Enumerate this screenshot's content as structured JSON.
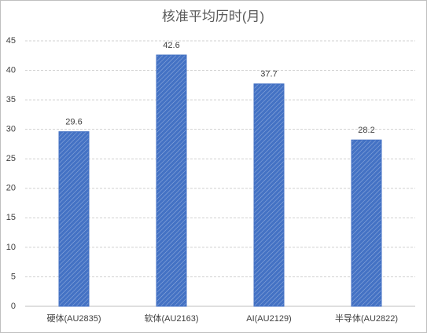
{
  "chart_data": {
    "type": "bar",
    "title": "核准平均历时(月)",
    "categories": [
      "硬体(AU2835)",
      "软体(AU2163)",
      "AI(AU2129)",
      "半导体(AU2822)"
    ],
    "values": [
      29.6,
      42.6,
      37.7,
      28.2
    ],
    "color": "#4472c4",
    "ylim": [
      0,
      45
    ],
    "yticks": [
      0,
      5,
      10,
      15,
      20,
      25,
      30,
      35,
      40,
      45
    ],
    "grid": true
  }
}
